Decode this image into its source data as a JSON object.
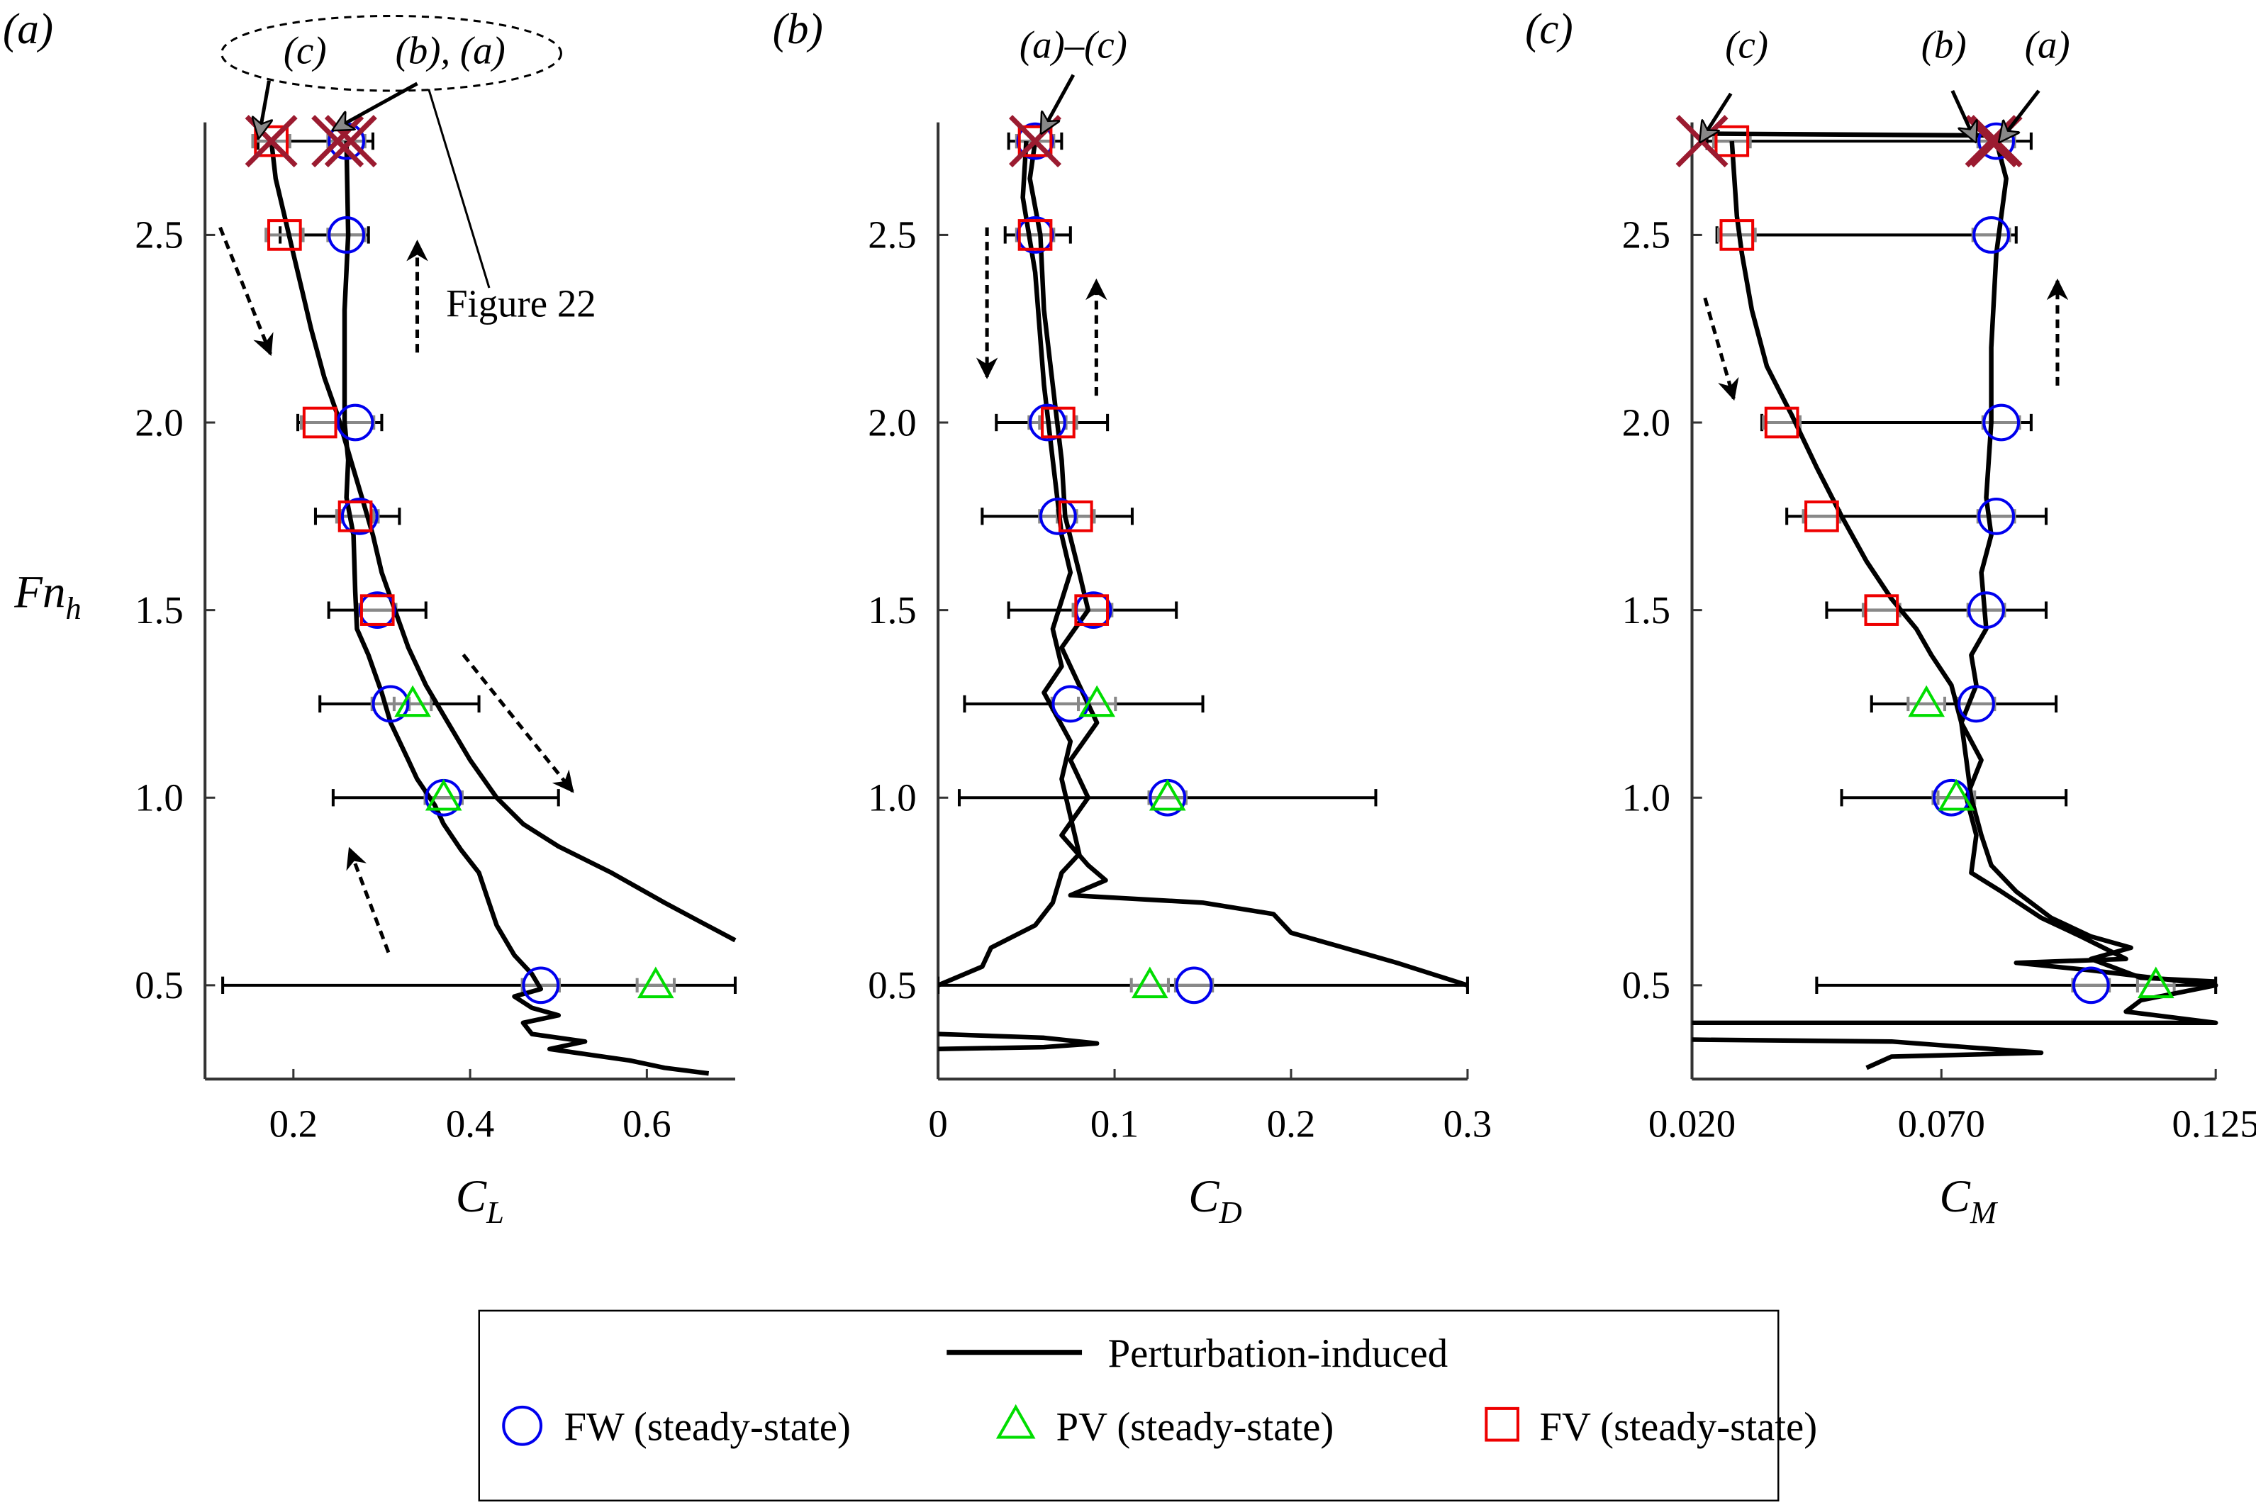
{
  "colors": {
    "FW": "#0000ee",
    "PV": "#00dd00",
    "FV": "#ee0000",
    "cross": "#9b1b30",
    "error_outer": "#000000",
    "error_inner": "#888888",
    "curve": "#000000"
  },
  "legend": {
    "placement": "bottom-center",
    "items": [
      {
        "label": "Perturbation-induced",
        "marker": "line"
      },
      {
        "label": "FW (steady-state)",
        "marker": "circle"
      },
      {
        "label": "PV (steady-state)",
        "marker": "triangle"
      },
      {
        "label": "FV (steady-state)",
        "marker": "square"
      }
    ]
  },
  "chart_data": [
    {
      "panel_label": "(a)",
      "type": "line+scatter",
      "xlabel": "C_L",
      "xlabel_main": "C",
      "xlabel_sub": "L",
      "ylabel_main": "Fn",
      "ylabel_sub": "h",
      "xlim": [
        0.1,
        0.7
      ],
      "ylim": [
        0.25,
        2.8
      ],
      "xticks": [
        {
          "v": 0.2,
          "label": "0.2"
        },
        {
          "v": 0.4,
          "label": "0.4"
        },
        {
          "v": 0.6,
          "label": "0.6"
        }
      ],
      "yticks": [
        {
          "v": 0.5,
          "label": "0.5"
        },
        {
          "v": 1.0,
          "label": "1.0"
        },
        {
          "v": 1.5,
          "label": "1.5"
        },
        {
          "v": 2.0,
          "label": "2.0"
        },
        {
          "v": 2.5,
          "label": "2.5"
        }
      ],
      "annotations": {
        "top_labels": [
          "(c)",
          "(b), (a)"
        ],
        "figure_ref": "Figure 22"
      },
      "curves": [
        [
          [
            0.175,
            2.75
          ],
          [
            0.18,
            2.65
          ],
          [
            0.19,
            2.55
          ],
          [
            0.2,
            2.45
          ],
          [
            0.21,
            2.35
          ],
          [
            0.22,
            2.25
          ],
          [
            0.235,
            2.12
          ],
          [
            0.25,
            2.02
          ],
          [
            0.265,
            1.9
          ],
          [
            0.28,
            1.78
          ],
          [
            0.29,
            1.7
          ],
          [
            0.3,
            1.6
          ],
          [
            0.315,
            1.5
          ],
          [
            0.33,
            1.4
          ],
          [
            0.35,
            1.3
          ],
          [
            0.375,
            1.2
          ],
          [
            0.4,
            1.1
          ],
          [
            0.43,
            1.0
          ],
          [
            0.46,
            0.93
          ],
          [
            0.5,
            0.87
          ],
          [
            0.56,
            0.8
          ],
          [
            0.62,
            0.72
          ],
          [
            0.66,
            0.67
          ],
          [
            0.7,
            0.62
          ]
        ],
        [
          [
            0.26,
            2.75
          ],
          [
            0.262,
            2.5
          ],
          [
            0.258,
            2.3
          ],
          [
            0.258,
            2.0
          ],
          [
            0.262,
            1.9
          ],
          [
            0.26,
            1.8
          ],
          [
            0.268,
            1.7
          ],
          [
            0.27,
            1.55
          ],
          [
            0.272,
            1.45
          ],
          [
            0.285,
            1.38
          ],
          [
            0.3,
            1.28
          ],
          [
            0.31,
            1.2
          ],
          [
            0.33,
            1.1
          ],
          [
            0.34,
            1.05
          ],
          [
            0.36,
            0.98
          ],
          [
            0.37,
            0.93
          ],
          [
            0.39,
            0.86
          ],
          [
            0.41,
            0.8
          ],
          [
            0.42,
            0.73
          ],
          [
            0.43,
            0.66
          ],
          [
            0.45,
            0.58
          ],
          [
            0.47,
            0.53
          ],
          [
            0.48,
            0.49
          ],
          [
            0.45,
            0.47
          ],
          [
            0.47,
            0.44
          ],
          [
            0.5,
            0.42
          ],
          [
            0.46,
            0.4
          ],
          [
            0.47,
            0.37
          ],
          [
            0.53,
            0.35
          ],
          [
            0.49,
            0.33
          ],
          [
            0.58,
            0.3
          ],
          [
            0.62,
            0.28
          ],
          [
            0.67,
            0.265
          ]
        ]
      ],
      "crosses": [
        [
          0.175,
          2.75
        ],
        [
          0.25,
          2.75
        ],
        [
          0.265,
          2.75
        ]
      ],
      "points": [
        {
          "fn": 2.75,
          "FW": 0.26,
          "FV": 0.175,
          "err": [
            0.16,
            0.29
          ]
        },
        {
          "fn": 2.5,
          "FW": 0.26,
          "FV": 0.19,
          "err": [
            0.185,
            0.285
          ]
        },
        {
          "fn": 2.0,
          "FW": 0.27,
          "FV": 0.23,
          "err": [
            0.205,
            0.3
          ]
        },
        {
          "fn": 1.75,
          "FW": 0.275,
          "FV": 0.27,
          "err": [
            0.225,
            0.32
          ]
        },
        {
          "fn": 1.5,
          "FW": 0.295,
          "FV": 0.295,
          "err": [
            0.24,
            0.35
          ]
        },
        {
          "fn": 1.25,
          "FW": 0.31,
          "PV": 0.335,
          "err": [
            0.23,
            0.41
          ]
        },
        {
          "fn": 1.0,
          "FW": 0.37,
          "PV": 0.37,
          "err": [
            0.245,
            0.5
          ]
        },
        {
          "fn": 0.5,
          "FW": 0.48,
          "PV": 0.61,
          "err": [
            0.12,
            0.7
          ]
        }
      ]
    },
    {
      "panel_label": "(b)",
      "type": "line+scatter",
      "xlabel": "C_D",
      "xlabel_main": "C",
      "xlabel_sub": "D",
      "xlim": [
        0,
        0.3
      ],
      "ylim": [
        0.25,
        2.8
      ],
      "xticks": [
        {
          "v": 0,
          "label": "0"
        },
        {
          "v": 0.1,
          "label": "0.1"
        },
        {
          "v": 0.2,
          "label": "0.2"
        },
        {
          "v": 0.3,
          "label": "0.3"
        }
      ],
      "yticks": [
        {
          "v": 0.5,
          "label": "0.5"
        },
        {
          "v": 1.0,
          "label": "1.0"
        },
        {
          "v": 1.5,
          "label": "1.5"
        },
        {
          "v": 2.0,
          "label": "2.0"
        },
        {
          "v": 2.5,
          "label": "2.5"
        }
      ],
      "annotations": {
        "top_labels": [
          "(a)–(c)"
        ]
      },
      "curves": [
        [
          [
            0.055,
            2.75
          ],
          [
            0.052,
            2.65
          ],
          [
            0.058,
            2.5
          ],
          [
            0.06,
            2.3
          ],
          [
            0.065,
            2.1
          ],
          [
            0.07,
            1.9
          ],
          [
            0.072,
            1.75
          ],
          [
            0.08,
            1.6
          ],
          [
            0.085,
            1.5
          ],
          [
            0.07,
            1.4
          ],
          [
            0.08,
            1.3
          ],
          [
            0.09,
            1.2
          ],
          [
            0.075,
            1.1
          ],
          [
            0.085,
            1.0
          ],
          [
            0.07,
            0.9
          ],
          [
            0.085,
            0.82
          ],
          [
            0.095,
            0.78
          ],
          [
            0.075,
            0.74
          ],
          [
            0.15,
            0.72
          ],
          [
            0.19,
            0.69
          ],
          [
            0.2,
            0.64
          ],
          [
            0.23,
            0.6
          ],
          [
            0.26,
            0.56
          ],
          [
            0.3,
            0.5
          ]
        ],
        [
          [
            0.05,
            2.75
          ],
          [
            0.048,
            2.6
          ],
          [
            0.055,
            2.4
          ],
          [
            0.06,
            2.1
          ],
          [
            0.065,
            1.9
          ],
          [
            0.07,
            1.7
          ],
          [
            0.075,
            1.6
          ],
          [
            0.065,
            1.45
          ],
          [
            0.07,
            1.35
          ],
          [
            0.06,
            1.28
          ],
          [
            0.075,
            1.15
          ],
          [
            0.07,
            1.05
          ],
          [
            0.075,
            0.95
          ],
          [
            0.08,
            0.85
          ],
          [
            0.07,
            0.8
          ],
          [
            0.065,
            0.72
          ],
          [
            0.055,
            0.66
          ],
          [
            0.03,
            0.6
          ],
          [
            0.025,
            0.55
          ],
          [
            0.0,
            0.5
          ]
        ],
        [
          [
            0.0,
            0.37
          ],
          [
            0.06,
            0.36
          ],
          [
            0.09,
            0.345
          ],
          [
            0.06,
            0.335
          ],
          [
            0.0,
            0.33
          ]
        ]
      ],
      "crosses": [
        [
          0.055,
          2.75
        ]
      ],
      "points": [
        {
          "fn": 2.75,
          "FW": 0.055,
          "FV": 0.055,
          "err": [
            0.04,
            0.07
          ]
        },
        {
          "fn": 2.5,
          "FW": 0.055,
          "FV": 0.055,
          "err": [
            0.038,
            0.075
          ]
        },
        {
          "fn": 2.0,
          "FW": 0.062,
          "FV": 0.068,
          "err": [
            0.033,
            0.096
          ]
        },
        {
          "fn": 1.75,
          "FW": 0.068,
          "FV": 0.078,
          "err": [
            0.025,
            0.11
          ]
        },
        {
          "fn": 1.5,
          "FW": 0.088,
          "FV": 0.087,
          "err": [
            0.04,
            0.135
          ]
        },
        {
          "fn": 1.25,
          "FW": 0.075,
          "PV": 0.09,
          "err": [
            0.015,
            0.15
          ]
        },
        {
          "fn": 1.0,
          "FW": 0.13,
          "PV": 0.13,
          "err": [
            0.012,
            0.248
          ]
        },
        {
          "fn": 0.5,
          "FW": 0.145,
          "PV": 0.12,
          "err": [
            0.0,
            0.3
          ]
        }
      ]
    },
    {
      "panel_label": "(c)",
      "type": "line+scatter",
      "xlabel": "C_M",
      "xlabel_main": "C",
      "xlabel_sub": "M",
      "xlim": [
        0.02,
        0.125
      ],
      "ylim": [
        0.25,
        2.8
      ],
      "xticks": [
        {
          "v": 0.02,
          "label": "0.020"
        },
        {
          "v": 0.07,
          "label": "0.070"
        },
        {
          "v": 0.125,
          "label": "0.125"
        }
      ],
      "yticks": [
        {
          "v": 0.5,
          "label": "0.5"
        },
        {
          "v": 1.0,
          "label": "1.0"
        },
        {
          "v": 1.5,
          "label": "1.5"
        },
        {
          "v": 2.0,
          "label": "2.0"
        },
        {
          "v": 2.5,
          "label": "2.5"
        }
      ],
      "annotations": {
        "top_labels": [
          "(c)",
          "(b)",
          "(a)"
        ]
      },
      "curves": [
        [
          [
            0.022,
            2.77
          ],
          [
            0.08,
            2.765
          ]
        ],
        [
          [
            0.028,
            2.75
          ],
          [
            0.029,
            2.55
          ],
          [
            0.03,
            2.45
          ],
          [
            0.032,
            2.3
          ],
          [
            0.035,
            2.15
          ],
          [
            0.04,
            2.02
          ],
          [
            0.045,
            1.88
          ],
          [
            0.05,
            1.75
          ],
          [
            0.055,
            1.63
          ],
          [
            0.06,
            1.53
          ],
          [
            0.065,
            1.45
          ],
          [
            0.068,
            1.38
          ],
          [
            0.072,
            1.3
          ],
          [
            0.074,
            1.2
          ],
          [
            0.075,
            1.1
          ],
          [
            0.076,
            1.0
          ],
          [
            0.078,
            0.9
          ],
          [
            0.08,
            0.82
          ],
          [
            0.085,
            0.75
          ],
          [
            0.092,
            0.68
          ],
          [
            0.1,
            0.63
          ],
          [
            0.108,
            0.6
          ],
          [
            0.1,
            0.57
          ],
          [
            0.11,
            0.52
          ],
          [
            0.125,
            0.51
          ]
        ],
        [
          [
            0.081,
            2.75
          ],
          [
            0.083,
            2.65
          ],
          [
            0.081,
            2.45
          ],
          [
            0.08,
            2.2
          ],
          [
            0.08,
            2.0
          ],
          [
            0.079,
            1.8
          ],
          [
            0.08,
            1.7
          ],
          [
            0.078,
            1.6
          ],
          [
            0.079,
            1.45
          ],
          [
            0.076,
            1.38
          ],
          [
            0.077,
            1.3
          ],
          [
            0.074,
            1.2
          ],
          [
            0.078,
            1.1
          ],
          [
            0.075,
            1.0
          ],
          [
            0.077,
            0.9
          ],
          [
            0.076,
            0.8
          ],
          [
            0.082,
            0.75
          ],
          [
            0.09,
            0.68
          ],
          [
            0.098,
            0.63
          ],
          [
            0.107,
            0.57
          ],
          [
            0.085,
            0.56
          ],
          [
            0.1,
            0.54
          ],
          [
            0.125,
            0.5
          ],
          [
            0.11,
            0.46
          ],
          [
            0.107,
            0.43
          ],
          [
            0.125,
            0.4
          ],
          [
            0.02,
            0.4
          ]
        ],
        [
          [
            0.02,
            0.355
          ],
          [
            0.06,
            0.35
          ],
          [
            0.09,
            0.32
          ],
          [
            0.06,
            0.31
          ],
          [
            0.055,
            0.28
          ]
        ]
      ],
      "crosses": [
        [
          0.022,
          2.75
        ],
        [
          0.08,
          2.75
        ],
        [
          0.081,
          2.75
        ]
      ],
      "points": [
        {
          "fn": 2.75,
          "FW": 0.081,
          "FV": 0.028,
          "err": [
            0.023,
            0.088
          ]
        },
        {
          "fn": 2.5,
          "FW": 0.08,
          "FV": 0.029,
          "err": [
            0.025,
            0.085
          ]
        },
        {
          "fn": 2.0,
          "FW": 0.082,
          "FV": 0.038,
          "err": [
            0.034,
            0.088
          ]
        },
        {
          "fn": 1.75,
          "FW": 0.081,
          "FV": 0.046,
          "err": [
            0.039,
            0.091
          ]
        },
        {
          "fn": 1.5,
          "FW": 0.079,
          "FV": 0.058,
          "err": [
            0.047,
            0.091
          ]
        },
        {
          "fn": 1.25,
          "FW": 0.077,
          "PV": 0.067,
          "err": [
            0.056,
            0.093
          ]
        },
        {
          "fn": 1.0,
          "FW": 0.072,
          "PV": 0.073,
          "err": [
            0.05,
            0.095
          ]
        },
        {
          "fn": 0.5,
          "FW": 0.1,
          "PV": 0.113,
          "err": [
            0.045,
            0.125
          ]
        }
      ]
    }
  ]
}
